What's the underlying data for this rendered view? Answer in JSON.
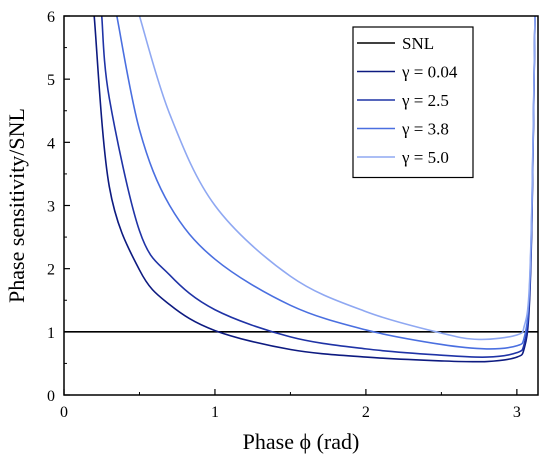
{
  "chart_data": {
    "type": "line",
    "title": "",
    "xlabel": "Phase ϕ (rad)",
    "ylabel": "Phase sensitivity/SNL",
    "xlim": [
      0,
      3.14
    ],
    "ylim": [
      0,
      6
    ],
    "x_ticks": [
      "0",
      "1",
      "2",
      "3"
    ],
    "y_ticks": [
      "0",
      "1",
      "2",
      "3",
      "4",
      "5",
      "6"
    ],
    "grid": false,
    "legend_position": "top-right",
    "series": [
      {
        "name": "SNL",
        "color": "#000000",
        "x": [
          0,
          3.14
        ],
        "y": [
          1,
          1
        ]
      },
      {
        "name": "γ = 0.04",
        "color": "#0d1a80",
        "x": [
          0.2,
          0.3,
          0.5,
          0.7,
          1.0,
          1.5,
          2.0,
          2.5,
          2.8,
          3.0,
          3.05,
          3.08,
          3.1,
          3.12
        ],
        "y": [
          6.0,
          3.3,
          1.98,
          1.43,
          1.02,
          0.72,
          0.6,
          0.54,
          0.53,
          0.6,
          0.75,
          1.3,
          2.8,
          6.0
        ]
      },
      {
        "name": "γ = 2.5",
        "color": "#1f33a6",
        "x": [
          0.25,
          0.3,
          0.5,
          0.7,
          1.0,
          1.5,
          2.0,
          2.5,
          2.8,
          3.0,
          3.05,
          3.08,
          3.1,
          3.12
        ],
        "y": [
          6.0,
          4.7,
          2.6,
          1.9,
          1.35,
          0.92,
          0.73,
          0.63,
          0.6,
          0.67,
          0.82,
          1.4,
          2.9,
          6.0
        ]
      },
      {
        "name": "γ = 3.8",
        "color": "#4a6fe0",
        "x": [
          0.35,
          0.5,
          0.7,
          1.0,
          1.5,
          2.0,
          2.5,
          2.8,
          3.0,
          3.05,
          3.08,
          3.1,
          3.12
        ],
        "y": [
          6.0,
          4.2,
          3.0,
          2.15,
          1.42,
          1.03,
          0.8,
          0.73,
          0.78,
          0.92,
          1.5,
          3.0,
          6.0
        ]
      },
      {
        "name": "γ = 5.0",
        "color": "#8fa8f2",
        "x": [
          0.5,
          0.7,
          1.0,
          1.5,
          2.0,
          2.5,
          2.75,
          3.0,
          3.05,
          3.08,
          3.1,
          3.12
        ],
        "y": [
          6.0,
          4.45,
          3.0,
          1.88,
          1.32,
          0.98,
          0.88,
          0.95,
          1.1,
          1.6,
          3.1,
          6.0
        ]
      }
    ]
  }
}
